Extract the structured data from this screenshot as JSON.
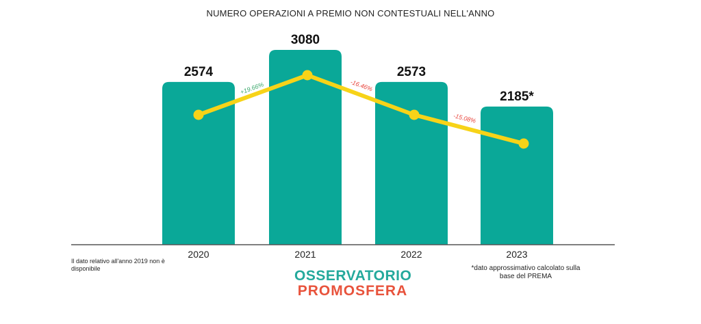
{
  "chart_data": {
    "type": "bar",
    "title": "NUMERO OPERAZIONI A PREMIO NON CONTESTUALI NELL'ANNO",
    "categories": [
      "2020",
      "2021",
      "2022",
      "2023"
    ],
    "values": [
      2574,
      3080,
      2573,
      2185
    ],
    "value_labels": [
      "2574",
      "3080",
      "2573",
      "2185*"
    ],
    "trend_changes": [
      "+19.66%",
      "-16.46%",
      "-15.08%"
    ],
    "trend_change_colors": [
      "#3aa86b",
      "#e8453c",
      "#e8453c"
    ],
    "bar_color": "#0aa898",
    "line_color": "#f7d318",
    "ylim": [
      0,
      3080
    ]
  },
  "notes": {
    "left": "Il dato relativo all'anno 2019 non è disponibile",
    "right": "*dato approssimativo calcolato sulla base del PREMA"
  },
  "logo": {
    "line1": "OSSERVATORIO",
    "line2": "PROMOSFERA"
  }
}
